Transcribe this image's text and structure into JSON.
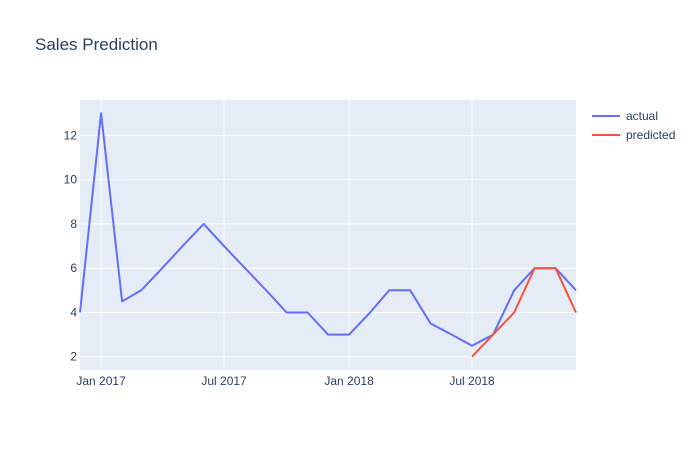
{
  "chart_data": {
    "type": "line",
    "title": "Sales Prediction",
    "xlabel": "",
    "ylabel": "",
    "x_axis": {
      "type": "date",
      "range": [
        "2016-12-01",
        "2018-12-01"
      ],
      "ticks": [
        {
          "value": "2017-01-01",
          "label": "Jan 2017"
        },
        {
          "value": "2017-07-01",
          "label": "Jul 2017"
        },
        {
          "value": "2018-01-01",
          "label": "Jan 2018"
        },
        {
          "value": "2018-07-01",
          "label": "Jul 2018"
        }
      ]
    },
    "y_axis": {
      "range": [
        1.4,
        13.6
      ],
      "ticks": [
        2,
        4,
        6,
        8,
        10,
        12
      ]
    },
    "grid": true,
    "background": "#e5ecf6",
    "legend_position": "top-right",
    "series": [
      {
        "name": "actual",
        "color": "#636efa",
        "x": [
          "2016-12-01",
          "2017-01-01",
          "2017-02-01",
          "2017-03-01",
          "2017-04-01",
          "2017-05-01",
          "2017-06-01",
          "2017-07-01",
          "2017-08-01",
          "2017-09-01",
          "2017-10-01",
          "2017-11-01",
          "2017-12-01",
          "2018-01-01",
          "2018-02-01",
          "2018-03-01",
          "2018-04-01",
          "2018-05-01",
          "2018-06-01",
          "2018-07-01",
          "2018-08-01",
          "2018-09-01",
          "2018-10-01",
          "2018-11-01",
          "2018-12-01"
        ],
        "y": [
          4,
          13,
          4.5,
          5,
          6,
          7,
          8,
          7,
          6,
          5,
          4,
          4,
          3,
          3,
          4,
          5,
          5,
          3.5,
          3,
          2.5,
          3,
          5,
          6,
          6,
          5
        ]
      },
      {
        "name": "predicted",
        "color": "#ef553b",
        "x": [
          "2018-07-01",
          "2018-08-01",
          "2018-09-01",
          "2018-10-01",
          "2018-11-01",
          "2018-12-01"
        ],
        "y": [
          2,
          3,
          4,
          6,
          6,
          4
        ]
      }
    ]
  }
}
